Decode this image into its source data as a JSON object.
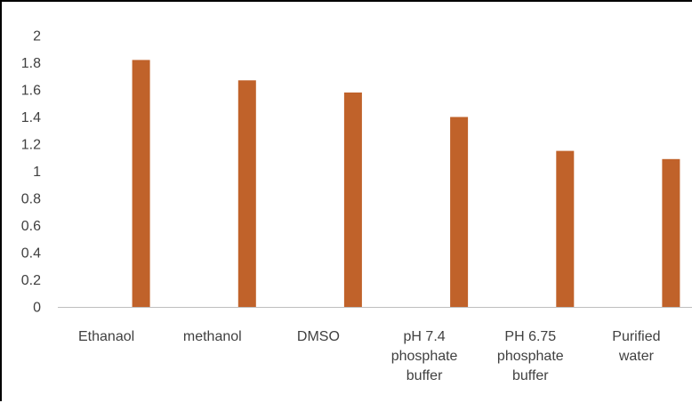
{
  "chart_data": {
    "type": "bar",
    "categories": [
      [
        "Ethanaol"
      ],
      [
        "methanol"
      ],
      [
        "DMSO"
      ],
      [
        "pH 7.4",
        "phosphate",
        "buffer"
      ],
      [
        "PH 6.75",
        "phosphate",
        "buffer"
      ],
      [
        "Purified",
        "water"
      ]
    ],
    "values": [
      1.82,
      1.67,
      1.58,
      1.4,
      1.15,
      1.09
    ],
    "yticks": [
      "0",
      "0.2",
      "0.4",
      "0.6",
      "0.8",
      "1",
      "1.2",
      "1.4",
      "1.6",
      "1.8",
      "2"
    ],
    "ylim": [
      0,
      2
    ],
    "grid": false,
    "bar_color": "#c0622a",
    "axis_color": "#bfbfbf",
    "text_color": "#404040"
  }
}
